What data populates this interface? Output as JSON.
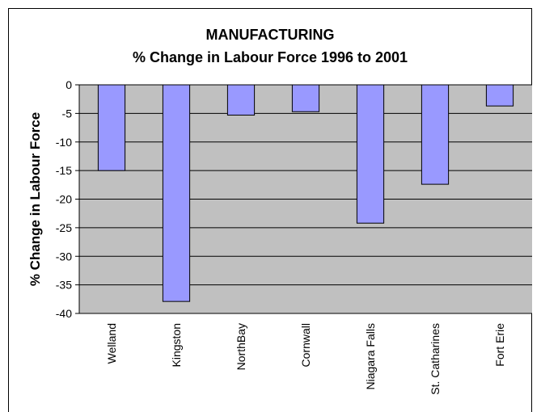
{
  "chart_data": {
    "type": "bar",
    "title": "MANUFACTURING",
    "subtitle": "% Change in Labour Force 1996 to 2001",
    "ylabel": "% Change in Labour Force",
    "xlabel": "",
    "categories": [
      "Welland",
      "Kingston",
      "NorthBay",
      "Cornwall",
      "Niagara Falls",
      "St. Catharines",
      "Fort Erie"
    ],
    "values": [
      -15.0,
      -37.9,
      -5.3,
      -4.7,
      -24.2,
      -17.4,
      -3.7
    ],
    "ylim": [
      -40,
      0
    ],
    "yticks": [
      0,
      -5,
      -10,
      -15,
      -20,
      -25,
      -30,
      -35,
      -40
    ],
    "grid": true,
    "legend": "none",
    "colors": {
      "plot_background": "#c0c0c0",
      "bar_fill": "#9999ff",
      "bar_stroke": "#000000",
      "gridline": "#000000"
    }
  }
}
